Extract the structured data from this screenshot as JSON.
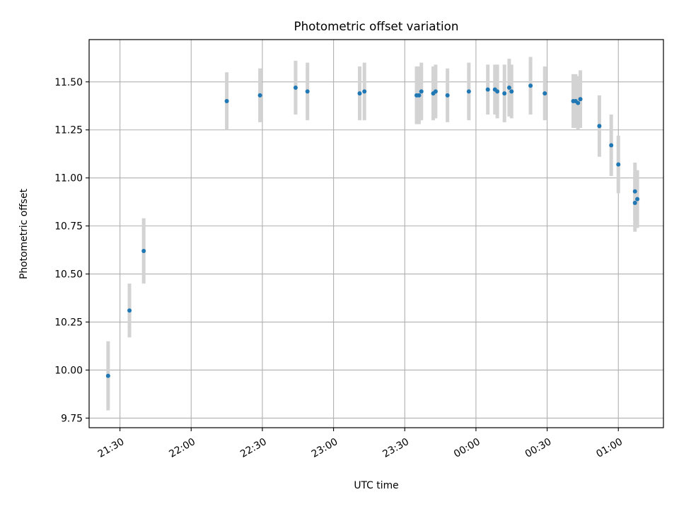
{
  "chart_data": {
    "type": "scatter",
    "title": "Photometric offset variation",
    "xlabel": "UTC time",
    "ylabel": "Photometric offset",
    "x_format": "HH:MM",
    "xlim": [
      "21:17",
      "01:19"
    ],
    "ylim": [
      9.7,
      11.72
    ],
    "x_ticks": [
      "21:30",
      "22:00",
      "22:30",
      "23:00",
      "23:30",
      "00:00",
      "00:30",
      "01:00"
    ],
    "y_ticks": [
      "9.75",
      "10.00",
      "10.25",
      "10.50",
      "10.75",
      "11.00",
      "11.25",
      "11.50"
    ],
    "grid": true,
    "colors": {
      "marker": "#1f77b4",
      "errorbar": "#d3d3d3",
      "grid": "#b0b0b0"
    },
    "series": [
      {
        "points": [
          {
            "x": "21:25",
            "y": 9.97,
            "err": 0.18
          },
          {
            "x": "21:34",
            "y": 10.31,
            "err": 0.14
          },
          {
            "x": "21:40",
            "y": 10.62,
            "err": 0.17
          },
          {
            "x": "22:15",
            "y": 11.4,
            "err": 0.15
          },
          {
            "x": "22:29",
            "y": 11.43,
            "err": 0.14
          },
          {
            "x": "22:44",
            "y": 11.47,
            "err": 0.14
          },
          {
            "x": "22:49",
            "y": 11.45,
            "err": 0.15
          },
          {
            "x": "23:11",
            "y": 11.44,
            "err": 0.14
          },
          {
            "x": "23:13",
            "y": 11.45,
            "err": 0.15
          },
          {
            "x": "23:35",
            "y": 11.43,
            "err": 0.15
          },
          {
            "x": "23:36",
            "y": 11.43,
            "err": 0.15
          },
          {
            "x": "23:37",
            "y": 11.45,
            "err": 0.15
          },
          {
            "x": "23:42",
            "y": 11.44,
            "err": 0.14
          },
          {
            "x": "23:43",
            "y": 11.45,
            "err": 0.14
          },
          {
            "x": "23:48",
            "y": 11.43,
            "err": 0.14
          },
          {
            "x": "23:57",
            "y": 11.45,
            "err": 0.15
          },
          {
            "x": "00:05",
            "y": 11.46,
            "err": 0.13
          },
          {
            "x": "00:08",
            "y": 11.46,
            "err": 0.13
          },
          {
            "x": "00:09",
            "y": 11.45,
            "err": 0.14
          },
          {
            "x": "00:12",
            "y": 11.44,
            "err": 0.15
          },
          {
            "x": "00:14",
            "y": 11.47,
            "err": 0.15
          },
          {
            "x": "00:15",
            "y": 11.45,
            "err": 0.14
          },
          {
            "x": "00:23",
            "y": 11.48,
            "err": 0.15
          },
          {
            "x": "00:29",
            "y": 11.44,
            "err": 0.14
          },
          {
            "x": "00:41",
            "y": 11.4,
            "err": 0.14
          },
          {
            "x": "00:42",
            "y": 11.4,
            "err": 0.14
          },
          {
            "x": "00:43",
            "y": 11.39,
            "err": 0.14
          },
          {
            "x": "00:44",
            "y": 11.41,
            "err": 0.15
          },
          {
            "x": "00:52",
            "y": 11.27,
            "err": 0.16
          },
          {
            "x": "00:57",
            "y": 11.17,
            "err": 0.16
          },
          {
            "x": "01:00",
            "y": 11.07,
            "err": 0.15
          },
          {
            "x": "01:07",
            "y": 10.93,
            "err": 0.15
          },
          {
            "x": "01:07",
            "y": 10.87,
            "err": 0.15
          },
          {
            "x": "01:08",
            "y": 10.89,
            "err": 0.15
          }
        ]
      }
    ]
  }
}
